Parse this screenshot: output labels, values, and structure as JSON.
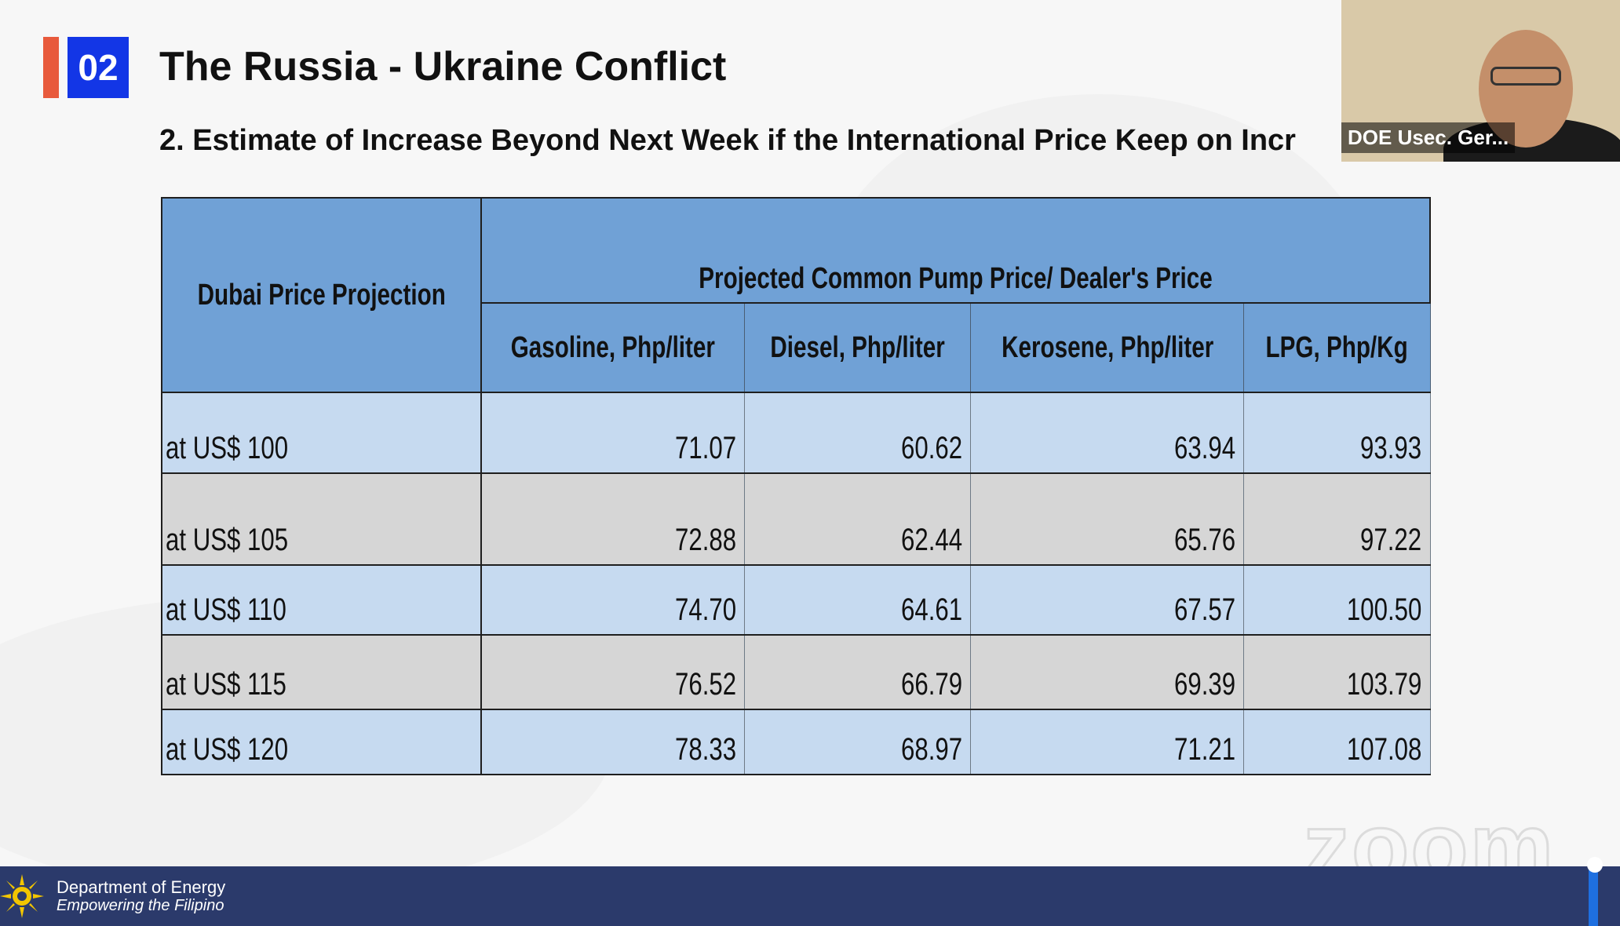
{
  "slide": {
    "section_number": "02",
    "title": "The Russia - Ukraine Conflict",
    "subtitle": "2. Estimate of Increase Beyond Next Week if the International Price Keep on Incr"
  },
  "table": {
    "row_header": "Dubai Price Projection",
    "group_header": "Projected Common Pump Price/ Dealer's Price",
    "columns": [
      "Gasoline, Php/liter",
      "Diesel, Php/liter",
      "Kerosene, Php/liter",
      "LPG, Php/Kg"
    ],
    "rows": [
      {
        "label": "at US$ 100",
        "values": [
          "71.07",
          "60.62",
          "63.94",
          "93.93"
        ]
      },
      {
        "label": "at US$ 105",
        "values": [
          "72.88",
          "62.44",
          "65.76",
          "97.22"
        ]
      },
      {
        "label": "at US$ 110",
        "values": [
          "74.70",
          "64.61",
          "67.57",
          "100.50"
        ]
      },
      {
        "label": "at US$ 115",
        "values": [
          "76.52",
          "66.79",
          "69.39",
          "103.79"
        ]
      },
      {
        "label": "at US$ 120",
        "values": [
          "78.33",
          "68.97",
          "71.21",
          "107.08"
        ]
      }
    ]
  },
  "participant": {
    "name_label": "DOE Usec. Ger..."
  },
  "watermark": "zoom",
  "footer": {
    "org": "Department of Energy",
    "tagline": "Empowering the Filipino",
    "logo_icon": "doe-sun-logo-icon"
  },
  "colors": {
    "section_accent": "#e85a3c",
    "section_badge": "#1336e6",
    "table_header": "#70a1d6",
    "row_light": "#c6daf0",
    "row_gray": "#d6d6d6",
    "footer_bg": "#2b3a6b"
  }
}
